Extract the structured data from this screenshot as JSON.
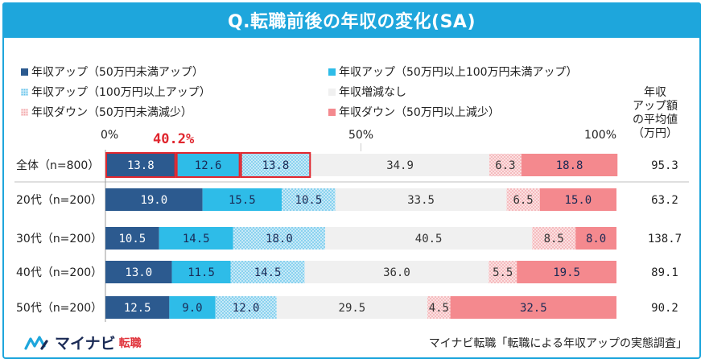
{
  "title": "Q.転職前後の年収の変化(SA)",
  "legend": [
    {
      "label": "年収アップ（50万円未満アップ）",
      "color": "#2c5a8f",
      "pattern": "solid"
    },
    {
      "label": "年収アップ（50万円以上100万円未満アップ）",
      "color": "#2ebce8",
      "pattern": "solid"
    },
    {
      "label": "年収アップ（100万円以上アップ）",
      "color": "#9bd8f1",
      "pattern": "dots"
    },
    {
      "label": "年収増減なし",
      "color": "#f0f0f0",
      "pattern": "solid"
    },
    {
      "label": "年収ダウン（50万円未満減少）",
      "color": "#f6bcbf",
      "pattern": "dots"
    },
    {
      "label": "年収ダウン（50万円以上減少）",
      "color": "#f4898e",
      "pattern": "solid"
    }
  ],
  "avg_header": [
    "年収",
    "アップ額",
    "の平均値",
    "（万円）"
  ],
  "chart_data": {
    "type": "bar",
    "orientation": "horizontal",
    "stacked": true,
    "axis_ticks": [
      "0%",
      "50%",
      "100%"
    ],
    "xlim": [
      0,
      100
    ],
    "highlight": {
      "label": "40.2%",
      "rows": [
        0
      ],
      "series": [
        0,
        1,
        2
      ]
    },
    "categories": [
      "全体（n=800）",
      "20代（n=200）",
      "30代（n=200）",
      "40代（n=200）",
      "50代（n=200）"
    ],
    "series": [
      {
        "name": "年収アップ（50万円未満アップ）",
        "values": [
          13.8,
          19.0,
          10.5,
          13.0,
          12.5
        ]
      },
      {
        "name": "年収アップ（50万円以上100万円未満アップ）",
        "values": [
          12.6,
          15.5,
          14.5,
          11.5,
          9.0
        ]
      },
      {
        "name": "年収アップ（100万円以上アップ）",
        "values": [
          13.8,
          10.5,
          18.0,
          14.5,
          12.0
        ]
      },
      {
        "name": "年収増減なし",
        "values": [
          34.9,
          33.5,
          40.5,
          36.0,
          29.5
        ]
      },
      {
        "name": "年収ダウン（50万円未満減少）",
        "values": [
          6.3,
          6.5,
          8.5,
          5.5,
          4.5
        ]
      },
      {
        "name": "年収ダウン（50万円以上減少）",
        "values": [
          18.8,
          15.0,
          8.0,
          19.5,
          32.5
        ]
      }
    ],
    "averages": [
      "95.3",
      "63.2",
      "138.7",
      "89.1",
      "90.2"
    ]
  },
  "logo": {
    "brand": "マイナビ",
    "sub": "転職"
  },
  "source": "マイナビ転職「転職による年収アップの実態調査」"
}
